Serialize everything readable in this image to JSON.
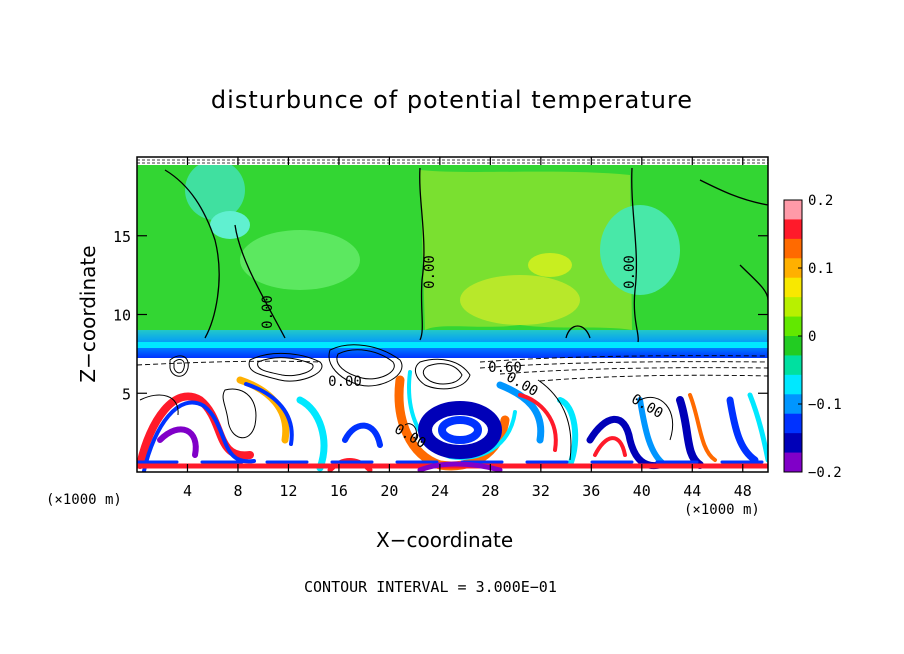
{
  "chart_data": {
    "type": "heatmap",
    "title": "disturbunce of potential temperature",
    "xlabel": "X−coordinate",
    "ylabel": "Z−coordinate",
    "x_unit": "(×1000 m)",
    "x_unit_right": "(×1000 m)",
    "xlim": [
      0,
      50
    ],
    "ylim": [
      0,
      20
    ],
    "x_ticks": [
      4,
      8,
      12,
      16,
      20,
      24,
      28,
      32,
      36,
      40,
      44,
      48
    ],
    "y_ticks": [
      5,
      10,
      15
    ],
    "colorbar": {
      "range": [
        -0.2,
        0.2
      ],
      "tick_labels": [
        "0.2",
        "0.1",
        "0",
        "−0.1",
        "−0.2"
      ],
      "tick_values": [
        0.2,
        0.1,
        0,
        -0.1,
        -0.2
      ],
      "colors": [
        "#ff9aa8",
        "#ff1a2a",
        "#ff6a00",
        "#ffb000",
        "#f8e800",
        "#b8f000",
        "#62e800",
        "#22cc22",
        "#00e0a0",
        "#00e8ff",
        "#0096ff",
        "#0032ff",
        "#0000b8",
        "#8000c8"
      ]
    },
    "contour_labels": [
      "0.00",
      "0.00",
      "0.00",
      "0.60",
      "0.00",
      "0.00",
      "0.00",
      "0.00"
    ],
    "contour_interval_text": "CONTOUR INTERVAL = 3.000E−01",
    "grid": false
  }
}
